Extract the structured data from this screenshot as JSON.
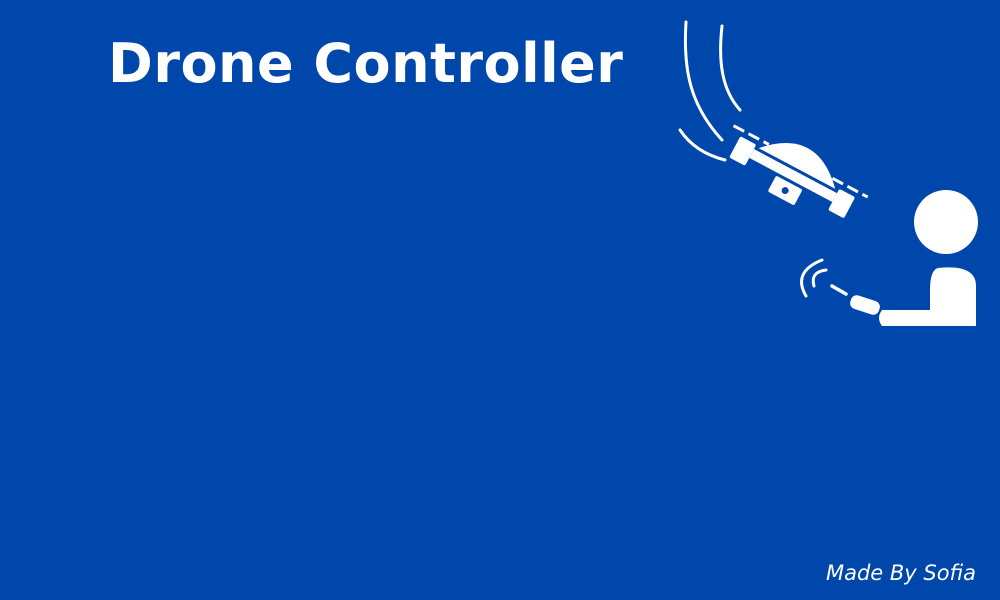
{
  "title": "Drone Controller",
  "credit": "Made By Sofia",
  "colors": {
    "background": "#0047ab",
    "foreground": "#ffffff"
  },
  "illustration": {
    "icons": [
      "drone-icon",
      "person-icon",
      "remote-controller-icon",
      "wifi-signal-icon",
      "motion-lines-icon"
    ]
  }
}
